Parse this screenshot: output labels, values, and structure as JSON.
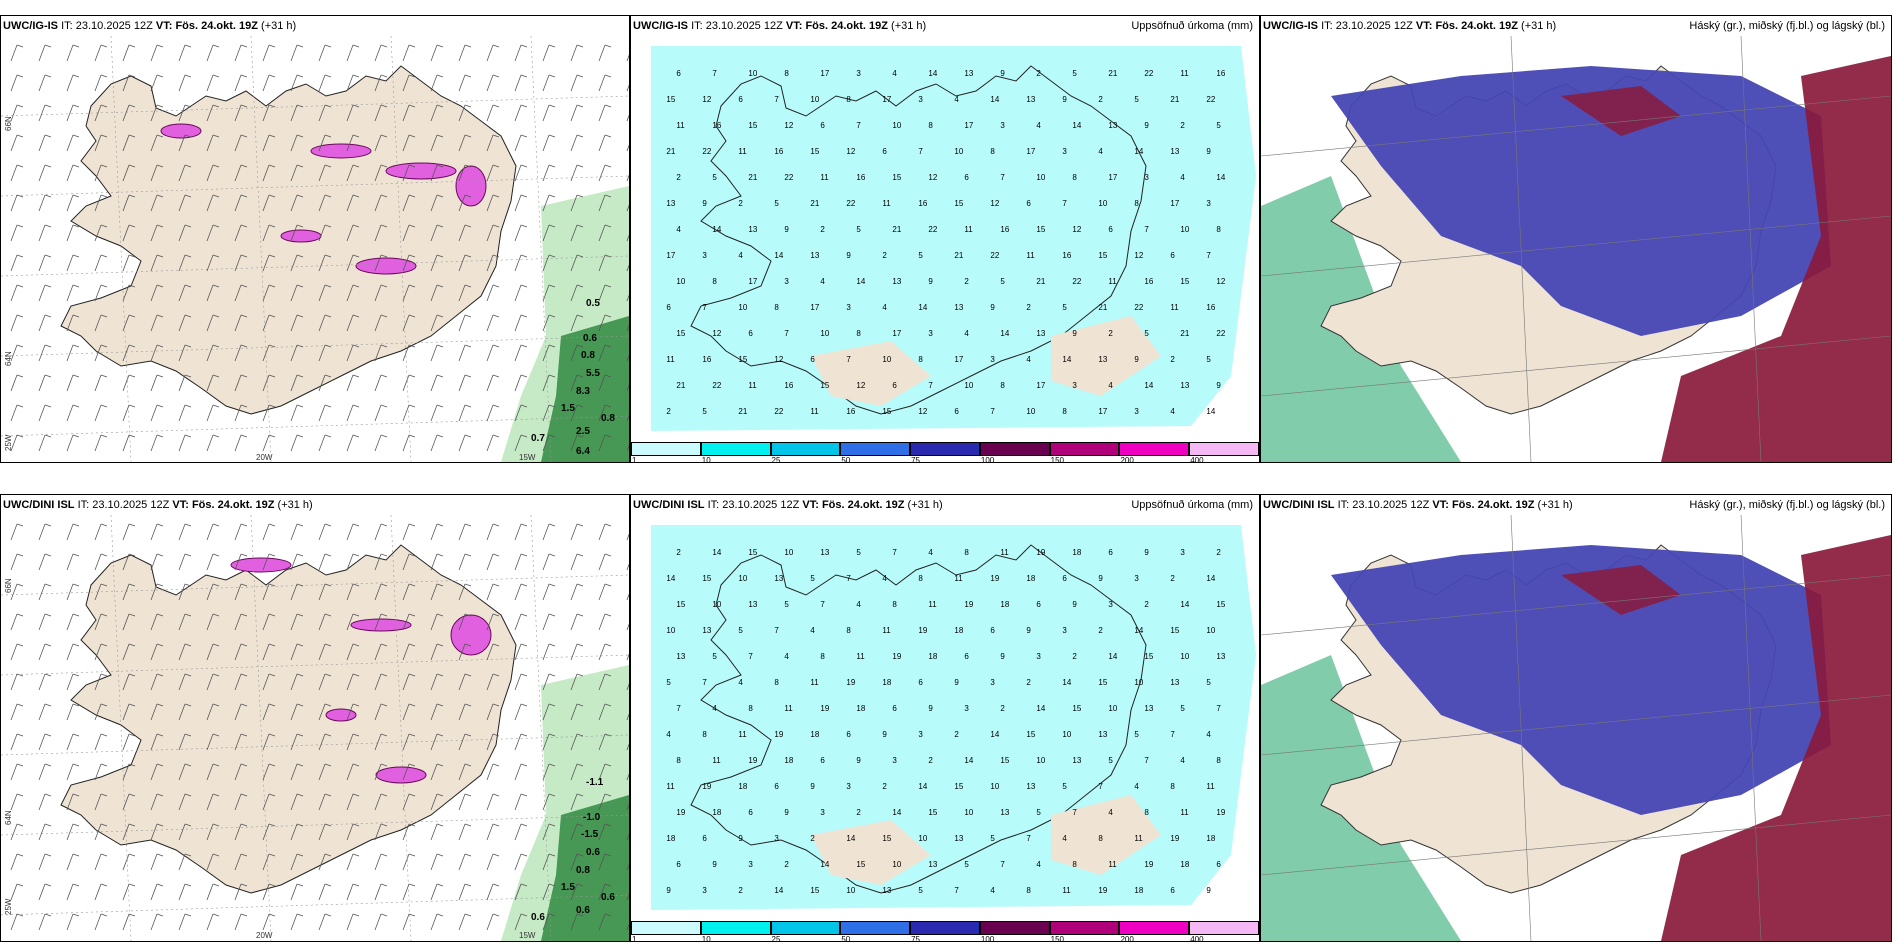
{
  "header_common": {
    "init_label": "IT:",
    "init_time": "23.10.2025 12Z",
    "valid_label": "VT:",
    "valid_time": "Fös. 24.okt. 19Z",
    "lead": "(+31 h)"
  },
  "rows": [
    {
      "model": "UWC/IG-IS"
    },
    {
      "model": "UWC/DINI ISL"
    }
  ],
  "panel_titles": {
    "precip": "Uppsöfnuð úrkoma (mm)",
    "clouds": "Háský (gr.), miðský (fj.bl.) og lágský (bl.)"
  },
  "axis_labels": {
    "lat66": "66N",
    "lat64": "64N",
    "lon25": "25W",
    "lon20": "20W",
    "lon15": "15W"
  },
  "precip_legend": {
    "ticks": [
      "1",
      "10",
      "25",
      "50",
      "75",
      "100",
      "150",
      "200",
      "400"
    ],
    "colors": [
      "#c9fbff",
      "#00f0f0",
      "#00c4e8",
      "#2e6ee6",
      "#2a2ab0",
      "#6a0050",
      "#b0007a",
      "#f000c0",
      "#f5b8f5"
    ]
  },
  "colors": {
    "land": "#efe3d4",
    "sea": "#ffffff",
    "precip_light": "#b8fbfb",
    "wind_barb": "#555555",
    "high_cloud_green": "#4cb888",
    "mid_cloud_blue": "#4646b4",
    "low_cloud_red": "#8a1a3c",
    "snow_pink": "#e060e0"
  },
  "row1": {
    "wind_labels": [
      "0.5",
      "0.6",
      "0.8",
      "5.5",
      "8.3",
      "1.5",
      "0.8",
      "0.7",
      "2.5",
      "6.4"
    ],
    "precip_labels": [
      "6",
      "7",
      "10",
      "8",
      "17",
      "3",
      "4",
      "14",
      "13",
      "9",
      "2",
      "5",
      "21",
      "22",
      "11",
      "16",
      "15",
      "12"
    ]
  },
  "row2": {
    "wind_labels": [
      "-1.1",
      "-1.0",
      "-1.5",
      "0.6",
      "0.8",
      "1.5",
      "0.6",
      "0.6",
      "0.6"
    ],
    "precip_labels": [
      "2",
      "14",
      "15",
      "10",
      "13",
      "5",
      "7",
      "4",
      "8",
      "11",
      "19",
      "18",
      "6",
      "9",
      "3"
    ]
  }
}
